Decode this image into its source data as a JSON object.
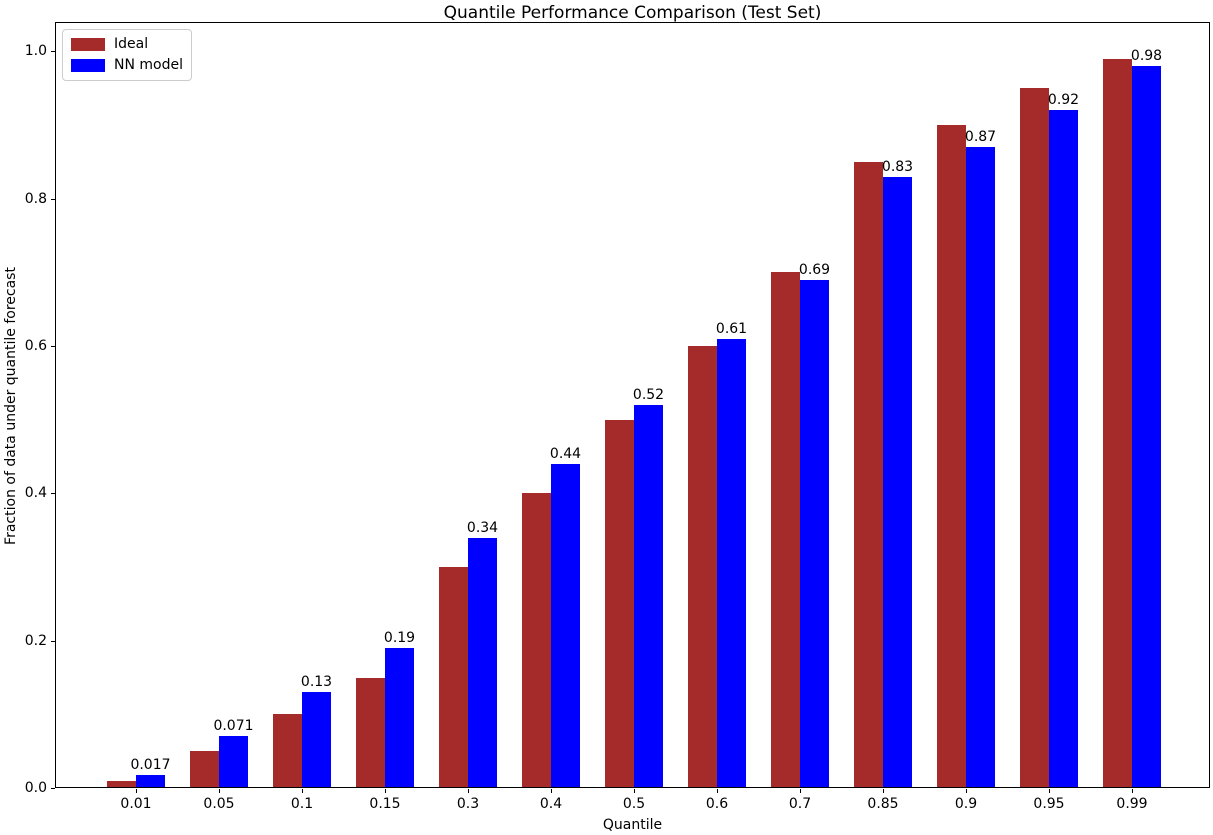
{
  "chart_data": {
    "type": "bar",
    "title": "Quantile Performance Comparison (Test Set)",
    "xlabel": "Quantile",
    "ylabel": "Fraction of data under quantile forecast",
    "categories": [
      "0.01",
      "0.05",
      "0.1",
      "0.15",
      "0.3",
      "0.4",
      "0.5",
      "0.6",
      "0.7",
      "0.85",
      "0.9",
      "0.95",
      "0.99"
    ],
    "series": [
      {
        "name": "Ideal",
        "color": "#a52a2a",
        "values": [
          0.01,
          0.05,
          0.1,
          0.15,
          0.3,
          0.4,
          0.5,
          0.6,
          0.7,
          0.85,
          0.9,
          0.95,
          0.99
        ]
      },
      {
        "name": "NN model",
        "color": "#0000ff",
        "values": [
          0.017,
          0.071,
          0.13,
          0.19,
          0.34,
          0.44,
          0.52,
          0.61,
          0.69,
          0.83,
          0.87,
          0.92,
          0.98
        ]
      }
    ],
    "bar_labels": [
      "0.017",
      "0.071",
      "0.13",
      "0.19",
      "0.34",
      "0.44",
      "0.52",
      "0.61",
      "0.69",
      "0.83",
      "0.87",
      "0.92",
      "0.98"
    ],
    "yticks": [
      "0.0",
      "0.2",
      "0.4",
      "0.6",
      "0.8",
      "1.0"
    ],
    "ylim": [
      0,
      1.04
    ],
    "legend_position": "upper left",
    "grid": false,
    "axis_color": "#000000",
    "background_color": "#ffffff"
  }
}
